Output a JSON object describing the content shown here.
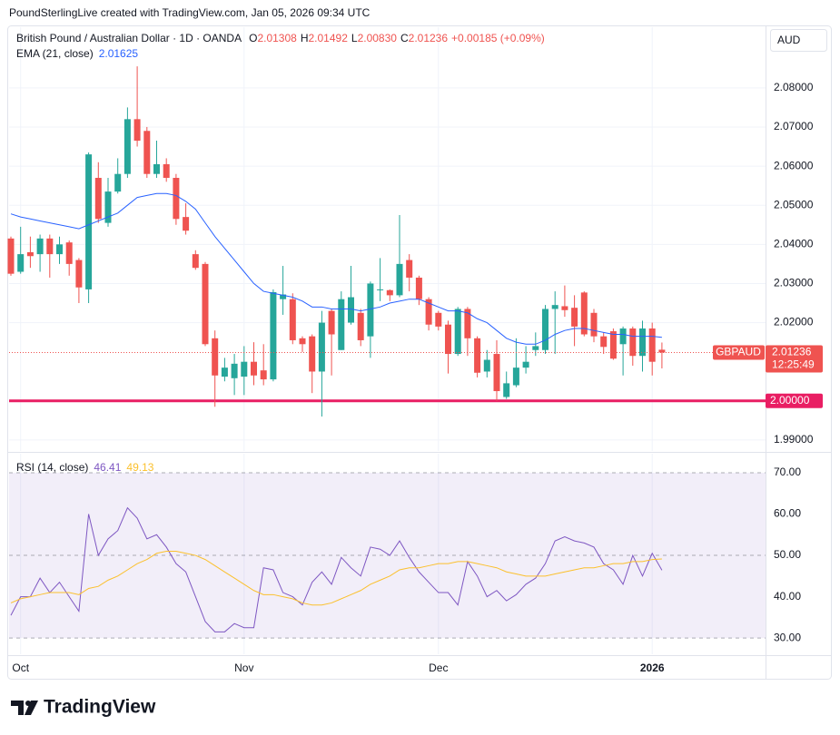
{
  "header": "PoundSterlingLive created with TradingView.com, Jan 05, 2026 09:34 UTC",
  "footer": {
    "logo": "TradingView"
  },
  "chart_data": [
    {
      "type": "candlestick",
      "title": "British Pound / Australian Dollar · 1D · OANDA",
      "ohlc_legend": [
        {
          "key": "O",
          "value": "2.01308"
        },
        {
          "key": "H",
          "value": "2.01492"
        },
        {
          "key": "L",
          "value": "2.00830"
        },
        {
          "key": "C",
          "value": "2.01236"
        }
      ],
      "change": "+0.00185 (+0.09%)",
      "currency": "AUD",
      "up_color": "#26a69a",
      "down_color": "#ef5350",
      "categories": [
        null,
        "Oct",
        null,
        null,
        null,
        null,
        null,
        null,
        null,
        null,
        null,
        null,
        null,
        null,
        null,
        null,
        null,
        null,
        null,
        null,
        null,
        null,
        null,
        null,
        "Nov",
        null,
        null,
        null,
        null,
        null,
        null,
        null,
        null,
        null,
        null,
        null,
        null,
        null,
        null,
        null,
        null,
        null,
        null,
        null,
        "Dec",
        null,
        null,
        null,
        null,
        null,
        null,
        null,
        null,
        null,
        null,
        null,
        null,
        null,
        null,
        null,
        null,
        null,
        null,
        null,
        null,
        null,
        "2026",
        null
      ],
      "open": [
        2.0415,
        2.033,
        2.038,
        2.0375,
        2.0415,
        2.0375,
        2.0405,
        2.036,
        2.0285,
        2.057,
        2.0455,
        2.0535,
        2.058,
        2.072,
        2.069,
        2.058,
        2.0605,
        2.057,
        2.047,
        2.0375,
        2.035,
        2.016,
        2.0062,
        2.0058,
        2.0062,
        2.01,
        2.0078,
        2.0055,
        2.026,
        2.026,
        2.016,
        2.0165,
        2.0075,
        2.023,
        2.013,
        2.02,
        2.0225,
        2.0165,
        2.0283,
        2.0283,
        2.027,
        2.036,
        2.0315,
        2.026,
        2.0225,
        2.0195,
        2.012,
        2.0235,
        2.016,
        2.0075,
        2.012,
        2.001,
        2.004,
        2.0085,
        2.013,
        2.013,
        2.0235,
        2.0242,
        2.0238,
        2.0277,
        2.0225,
        2.0165,
        2.0178,
        2.0145,
        2.0185,
        2.0115,
        2.0185,
        2.01308
      ],
      "high": [
        2.042,
        2.0445,
        2.042,
        2.0425,
        2.0425,
        2.042,
        2.041,
        2.0365,
        2.0635,
        2.061,
        2.057,
        2.062,
        2.075,
        2.0855,
        2.07,
        2.0665,
        2.062,
        2.058,
        2.0505,
        2.0385,
        2.0355,
        2.018,
        2.011,
        2.012,
        2.014,
        2.015,
        2.0145,
        2.0285,
        2.0345,
        2.0275,
        2.0165,
        2.017,
        2.023,
        2.0235,
        2.028,
        2.0345,
        2.0235,
        2.0305,
        2.0365,
        2.0285,
        2.0475,
        2.0375,
        2.032,
        2.0265,
        2.023,
        2.0205,
        2.024,
        2.024,
        2.0165,
        2.013,
        2.0155,
        2.0075,
        2.016,
        2.014,
        2.0175,
        2.0245,
        2.028,
        2.0295,
        2.027,
        2.028,
        2.0235,
        2.0175,
        2.0185,
        2.019,
        2.019,
        2.0205,
        2.02,
        2.01492
      ],
      "low": [
        2.032,
        2.0325,
        2.034,
        2.033,
        2.0315,
        2.035,
        2.032,
        2.025,
        2.025,
        2.0455,
        2.0445,
        2.053,
        2.057,
        2.065,
        2.057,
        2.057,
        2.056,
        2.045,
        2.0425,
        2.0335,
        2.014,
        1.9985,
        2.005,
        2.0015,
        2.0015,
        2.004,
        2.004,
        2.005,
        2.022,
        2.0145,
        2.0125,
        2.002,
        1.996,
        2.0065,
        2.013,
        2.0195,
        2.014,
        2.011,
        2.0255,
        2.0255,
        2.0265,
        2.028,
        2.0245,
        2.018,
        2.018,
        2.007,
        2.0115,
        2.0115,
        2.006,
        2.006,
        2.0,
        2.0005,
        2.0035,
        2.007,
        2.0115,
        2.012,
        2.012,
        2.0215,
        2.014,
        2.0165,
        2.015,
        2.012,
        2.0105,
        2.0065,
        2.009,
        2.0075,
        2.0065,
        2.0083
      ],
      "close": [
        2.0325,
        2.0375,
        2.037,
        2.0415,
        2.0375,
        2.04,
        2.035,
        2.029,
        2.063,
        2.0465,
        2.0535,
        2.058,
        2.072,
        2.0665,
        2.058,
        2.0605,
        2.057,
        2.0465,
        2.0435,
        2.034,
        2.0145,
        2.0065,
        2.0085,
        2.0095,
        2.01,
        2.0065,
        2.0055,
        2.0278,
        2.0272,
        2.0155,
        2.0145,
        2.0075,
        2.02,
        2.017,
        2.026,
        2.0265,
        2.0155,
        2.03,
        2.0285,
        2.027,
        2.035,
        2.0315,
        2.026,
        2.0195,
        2.019,
        2.012,
        2.0235,
        2.016,
        2.0072,
        2.0105,
        2.0025,
        2.0045,
        2.0085,
        2.01,
        2.014,
        2.0235,
        2.0245,
        2.0232,
        2.019,
        2.017,
        2.0165,
        2.0138,
        2.0108,
        2.0185,
        2.0115,
        2.0185,
        2.01,
        2.01236
      ],
      "overlays": [
        {
          "name": "EMA (21, close)",
          "last_label": "2.01625",
          "color": "#2962ff",
          "values": [
            2.0478,
            2.047,
            2.0465,
            2.046,
            2.0455,
            2.045,
            2.0445,
            2.044,
            2.045,
            2.046,
            2.047,
            2.048,
            2.05,
            2.052,
            2.0525,
            2.053,
            2.053,
            2.0525,
            2.051,
            2.049,
            2.0455,
            2.042,
            2.039,
            2.036,
            2.033,
            2.03,
            2.028,
            2.0275,
            2.027,
            2.0265,
            2.0255,
            2.024,
            2.024,
            2.0235,
            2.0235,
            2.0235,
            2.023,
            2.0235,
            2.024,
            2.025,
            2.0255,
            2.026,
            2.026,
            2.025,
            2.024,
            2.023,
            2.023,
            2.0225,
            2.021,
            2.02,
            2.018,
            2.016,
            2.015,
            2.0145,
            2.0145,
            2.0155,
            2.017,
            2.018,
            2.0185,
            2.0185,
            2.018,
            2.0175,
            2.017,
            2.017,
            2.0165,
            2.0165,
            2.0165,
            2.01625
          ]
        }
      ],
      "last_price": {
        "symbol": "GBPAUD",
        "label": "2.01236",
        "countdown": "12:25:49"
      },
      "horizontal_line": {
        "value": 2.0,
        "label": "2.00000",
        "color": "#e91e63"
      },
      "ylim": [
        1.9872,
        2.0955
      ],
      "yticks": [
        {
          "value": 1.99,
          "label": "1.99000"
        },
        {
          "value": 2.02,
          "label": "2.02000"
        },
        {
          "value": 2.03,
          "label": "2.03000"
        },
        {
          "value": 2.04,
          "label": "2.04000"
        },
        {
          "value": 2.05,
          "label": "2.05000"
        },
        {
          "value": 2.06,
          "label": "2.06000"
        },
        {
          "value": 2.07,
          "label": "2.07000"
        },
        {
          "value": 2.08,
          "label": "2.08000"
        }
      ],
      "grid": true
    },
    {
      "type": "line",
      "title": "RSI (14, close)",
      "series": [
        {
          "name": "RSI",
          "last_label": "46.41",
          "color": "#7e57c2",
          "values": [
            35.5,
            40,
            40,
            44.5,
            41,
            43.5,
            40,
            36.5,
            60,
            50,
            54,
            56,
            61.5,
            59,
            54,
            55,
            52,
            48,
            46,
            40,
            34,
            31.5,
            31.5,
            33.5,
            32.5,
            32.5,
            47,
            46.5,
            41,
            40,
            38,
            43.5,
            46,
            43,
            49.5,
            47,
            45,
            52,
            51.5,
            50,
            53.5,
            49.5,
            46,
            43.5,
            41,
            41,
            38,
            48.5,
            45,
            40,
            41.5,
            39,
            40.5,
            43,
            44.5,
            48,
            53.5,
            54.5,
            53.5,
            53,
            52,
            48,
            46.5,
            43,
            50,
            45,
            50.5,
            46.41
          ]
        },
        {
          "name": "RSI-based MA",
          "last_label": "49.13",
          "color": "#fbc02d",
          "values": [
            38.5,
            39.5,
            40,
            40.5,
            41,
            41,
            41,
            40.5,
            42,
            42.5,
            44,
            45,
            46.5,
            48,
            49,
            50.5,
            51,
            51,
            50.5,
            50,
            49,
            47.5,
            46,
            44.5,
            43,
            41.5,
            40.5,
            40.5,
            40,
            39.5,
            38.5,
            38,
            38,
            38.5,
            39.5,
            40.5,
            41.5,
            43,
            44,
            45,
            46.5,
            47,
            47,
            47.5,
            48,
            48,
            48.5,
            48.5,
            48,
            47.5,
            47,
            46,
            45.5,
            45,
            45,
            45,
            45.5,
            46,
            46.5,
            47,
            47,
            47.5,
            48,
            48,
            48.5,
            48.5,
            49,
            49.13
          ]
        }
      ],
      "levels": [
        70,
        50,
        30
      ],
      "band_color": "rgba(126,87,194,0.1)",
      "ylim": [
        26.3,
        74.6
      ],
      "yticks": [
        {
          "value": 30,
          "label": "30.00"
        },
        {
          "value": 40,
          "label": "40.00"
        },
        {
          "value": 50,
          "label": "50.00"
        },
        {
          "value": 60,
          "label": "60.00"
        },
        {
          "value": 70,
          "label": "70.00"
        }
      ],
      "grid": true
    }
  ]
}
